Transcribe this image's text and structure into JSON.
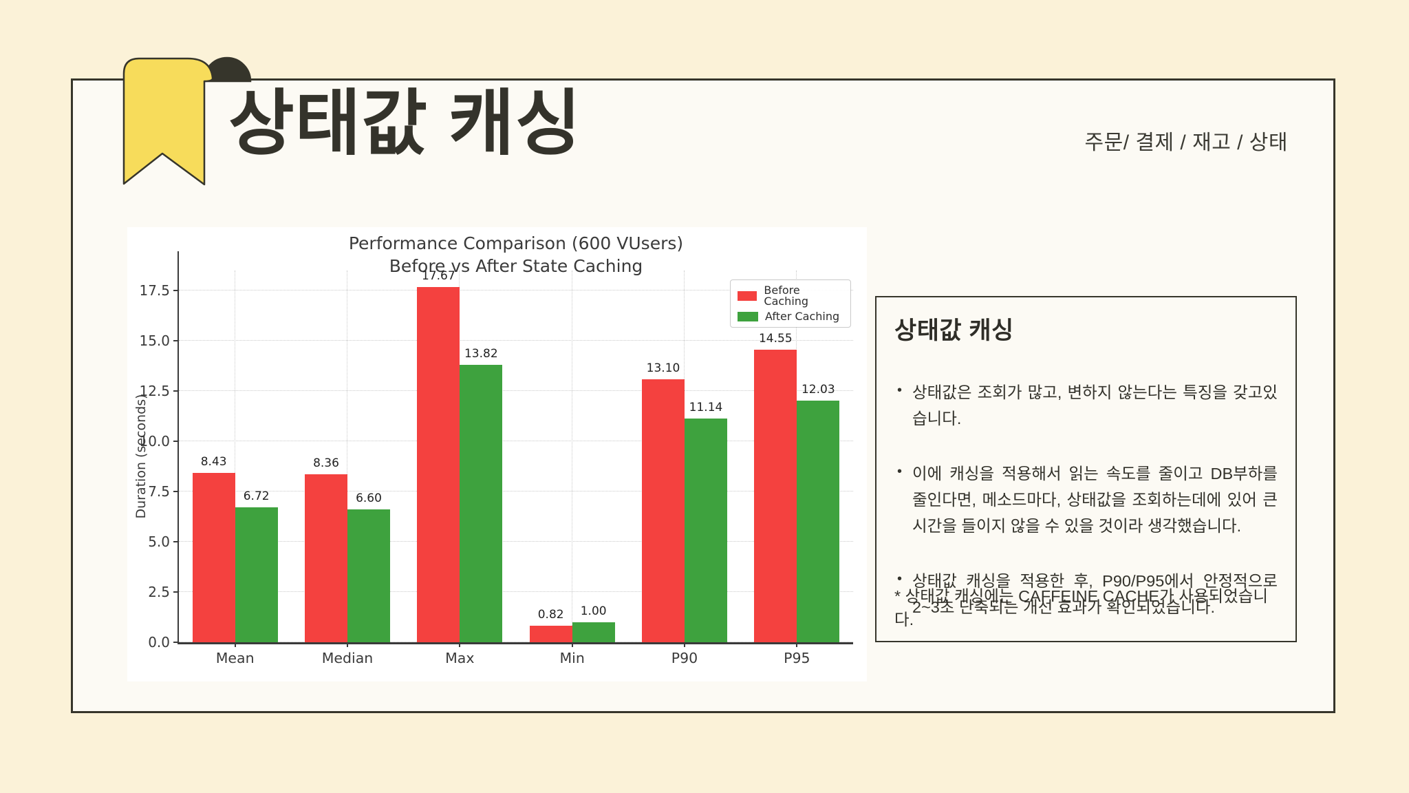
{
  "page": {
    "bg_color": "#FBF2D8",
    "card_bg": "#FCFAF4",
    "border_color": "#36352B"
  },
  "header": {
    "title": "상태값 캐싱",
    "breadcrumb": "주문/ 결제 / 재고 / 상태",
    "bookmark_color": "#F7DC5B"
  },
  "chart_data": {
    "type": "bar",
    "title_line1": "Performance Comparison (600 VUsers)",
    "title_line2": "Before vs After State Caching",
    "ylabel": "Duration (seconds)",
    "categories": [
      "Mean",
      "Median",
      "Max",
      "Min",
      "P90",
      "P95"
    ],
    "series": [
      {
        "name": "Before Caching",
        "color": "#F4413F",
        "values": [
          8.43,
          8.36,
          17.67,
          0.82,
          13.1,
          14.55
        ]
      },
      {
        "name": "After Caching",
        "color": "#3EA23E",
        "values": [
          6.72,
          6.6,
          13.82,
          1.0,
          11.14,
          12.03
        ]
      }
    ],
    "ylim": [
      0,
      18.5
    ],
    "yticks": [
      0.0,
      2.5,
      5.0,
      7.5,
      10.0,
      12.5,
      15.0,
      17.5
    ],
    "grid": true,
    "legend_position": "upper right"
  },
  "info_box": {
    "title": "상태값 캐싱",
    "bullets": [
      "상태값은 조회가 많고, 변하지 않는다는 특징을 갖고있습니다.",
      "이에 캐싱을 적용해서 읽는 속도를 줄이고 DB부하를 줄인다면, 메소드마다, 상태값을 조회하는데에 있어 큰 시간을 들이지 않을 수 있을 것이라 생각했습니다.",
      "상태값 캐싱을 적용한 후, P90/P95에서 안정적으로 2~3초 단축되는 개선 효과가 확인되었습니다."
    ],
    "footnote": "* 상태값 캐싱에는 CAFFEINE CACHE가 사용되었습니다."
  }
}
